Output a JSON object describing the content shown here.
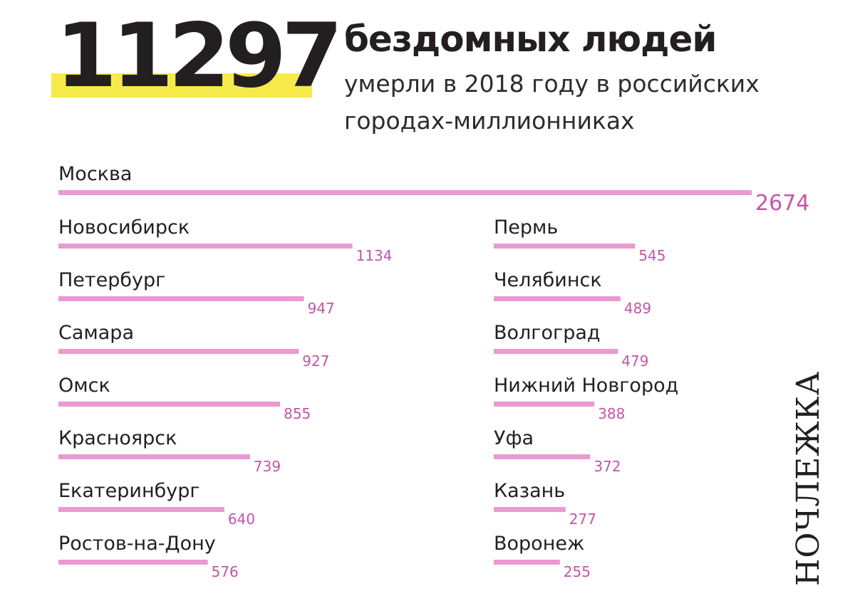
{
  "headline": {
    "number": "11297",
    "title": "бездомных людей",
    "subtitle_line1": "умерли в 2018 году в российских",
    "subtitle_line2": "городах-миллионниках"
  },
  "brand": "НОЧЛЕЖКА",
  "colors": {
    "bar": "#e99ad1",
    "value_text": "#c256a8",
    "highlight": "#f5ea4a",
    "text": "#231f20"
  },
  "chart_data": {
    "type": "bar",
    "orientation": "horizontal",
    "title": "",
    "xlabel": "",
    "ylabel": "",
    "xlim": [
      0,
      2674
    ],
    "grid": false,
    "legend": "none",
    "categories": [
      "Москва",
      "Новосибирск",
      "Петербург",
      "Самара",
      "Омск",
      "Красноярск",
      "Екатеринбург",
      "Ростов-на-Дону",
      "Пермь",
      "Челябинск",
      "Волгоград",
      "Нижний Новгород",
      "Уфа",
      "Казань",
      "Воронеж"
    ],
    "values": [
      2674,
      1134,
      947,
      927,
      855,
      739,
      640,
      576,
      545,
      489,
      479,
      388,
      372,
      277,
      255
    ]
  }
}
